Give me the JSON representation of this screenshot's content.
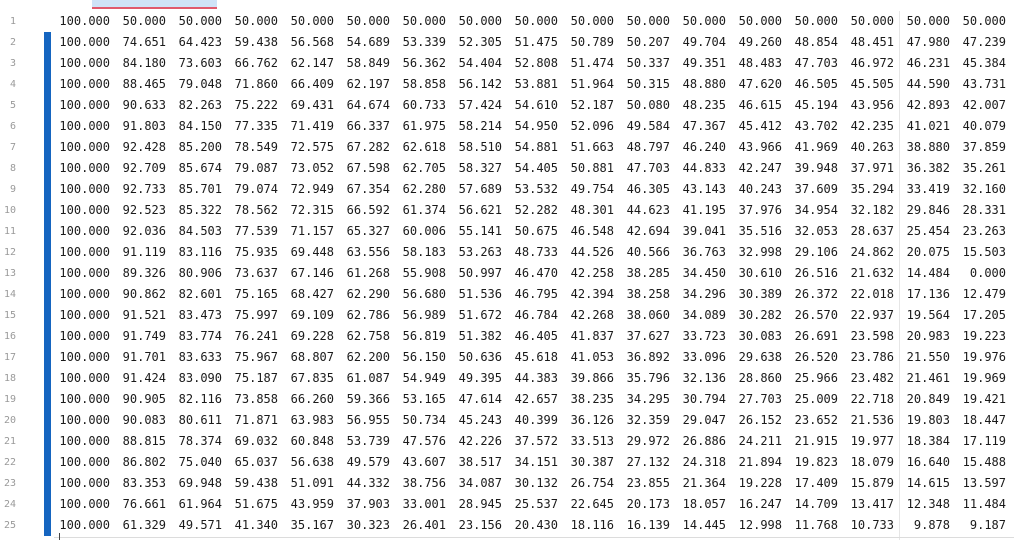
{
  "editor": {
    "first_line_number": 1,
    "rows": [
      [
        "100.000",
        "50.000",
        "50.000",
        "50.000",
        "50.000",
        "50.000",
        "50.000",
        "50.000",
        "50.000",
        "50.000",
        "50.000",
        "50.000",
        "50.000",
        "50.000",
        "50.000",
        "50.000",
        "50.000"
      ],
      [
        "100.000",
        "74.651",
        "64.423",
        "59.438",
        "56.568",
        "54.689",
        "53.339",
        "52.305",
        "51.475",
        "50.789",
        "50.207",
        "49.704",
        "49.260",
        "48.854",
        "48.451",
        "47.980",
        "47.239"
      ],
      [
        "100.000",
        "84.180",
        "73.603",
        "66.762",
        "62.147",
        "58.849",
        "56.362",
        "54.404",
        "52.808",
        "51.474",
        "50.337",
        "49.351",
        "48.483",
        "47.703",
        "46.972",
        "46.231",
        "45.384"
      ],
      [
        "100.000",
        "88.465",
        "79.048",
        "71.860",
        "66.409",
        "62.197",
        "58.858",
        "56.142",
        "53.881",
        "51.964",
        "50.315",
        "48.880",
        "47.620",
        "46.505",
        "45.505",
        "44.590",
        "43.731"
      ],
      [
        "100.000",
        "90.633",
        "82.263",
        "75.222",
        "69.431",
        "64.674",
        "60.733",
        "57.424",
        "54.610",
        "52.187",
        "50.080",
        "48.235",
        "46.615",
        "45.194",
        "43.956",
        "42.893",
        "42.007"
      ],
      [
        "100.000",
        "91.803",
        "84.150",
        "77.335",
        "71.419",
        "66.337",
        "61.975",
        "58.214",
        "54.950",
        "52.096",
        "49.584",
        "47.367",
        "45.412",
        "43.702",
        "42.235",
        "41.021",
        "40.079"
      ],
      [
        "100.000",
        "92.428",
        "85.200",
        "78.549",
        "72.575",
        "67.282",
        "62.618",
        "58.510",
        "54.881",
        "51.663",
        "48.797",
        "46.240",
        "43.966",
        "41.969",
        "40.263",
        "38.880",
        "37.859"
      ],
      [
        "100.000",
        "92.709",
        "85.674",
        "79.087",
        "73.052",
        "67.598",
        "62.705",
        "58.327",
        "54.405",
        "50.881",
        "47.703",
        "44.833",
        "42.247",
        "39.948",
        "37.971",
        "36.382",
        "35.261"
      ],
      [
        "100.000",
        "92.733",
        "85.701",
        "79.074",
        "72.949",
        "67.354",
        "62.280",
        "57.689",
        "53.532",
        "49.754",
        "46.305",
        "43.143",
        "40.243",
        "37.609",
        "35.294",
        "33.419",
        "32.160"
      ],
      [
        "100.000",
        "92.523",
        "85.322",
        "78.562",
        "72.315",
        "66.592",
        "61.374",
        "56.621",
        "52.282",
        "48.301",
        "44.623",
        "41.195",
        "37.976",
        "34.954",
        "32.182",
        "29.846",
        "28.331"
      ],
      [
        "100.000",
        "92.036",
        "84.503",
        "77.539",
        "71.157",
        "65.327",
        "60.006",
        "55.141",
        "50.675",
        "46.548",
        "42.694",
        "39.041",
        "35.516",
        "32.053",
        "28.637",
        "25.454",
        "23.263"
      ],
      [
        "100.000",
        "91.119",
        "83.116",
        "75.935",
        "69.448",
        "63.556",
        "58.183",
        "53.263",
        "48.733",
        "44.526",
        "40.566",
        "36.763",
        "32.998",
        "29.106",
        "24.862",
        "20.075",
        "15.503"
      ],
      [
        "100.000",
        "89.326",
        "80.906",
        "73.637",
        "67.146",
        "61.268",
        "55.908",
        "50.997",
        "46.470",
        "42.258",
        "38.285",
        "34.450",
        "30.610",
        "26.516",
        "21.632",
        "14.484",
        "0.000"
      ],
      [
        "100.000",
        "90.862",
        "82.601",
        "75.165",
        "68.427",
        "62.290",
        "56.680",
        "51.536",
        "46.795",
        "42.394",
        "38.258",
        "34.296",
        "30.389",
        "26.372",
        "22.018",
        "17.136",
        "12.479"
      ],
      [
        "100.000",
        "91.521",
        "83.473",
        "75.997",
        "69.109",
        "62.786",
        "56.989",
        "51.672",
        "46.784",
        "42.268",
        "38.060",
        "34.089",
        "30.282",
        "26.570",
        "22.937",
        "19.564",
        "17.205"
      ],
      [
        "100.000",
        "91.749",
        "83.774",
        "76.241",
        "69.228",
        "62.758",
        "56.819",
        "51.382",
        "46.405",
        "41.837",
        "37.627",
        "33.723",
        "30.083",
        "26.691",
        "23.598",
        "20.983",
        "19.223"
      ],
      [
        "100.000",
        "91.701",
        "83.633",
        "75.967",
        "68.807",
        "62.200",
        "56.150",
        "50.636",
        "45.618",
        "41.053",
        "36.892",
        "33.096",
        "29.638",
        "26.520",
        "23.786",
        "21.550",
        "19.976"
      ],
      [
        "100.000",
        "91.424",
        "83.090",
        "75.187",
        "67.835",
        "61.087",
        "54.949",
        "49.395",
        "44.383",
        "39.866",
        "35.796",
        "32.136",
        "28.860",
        "25.966",
        "23.482",
        "21.461",
        "19.969"
      ],
      [
        "100.000",
        "90.905",
        "82.116",
        "73.858",
        "66.260",
        "59.366",
        "53.165",
        "47.614",
        "42.657",
        "38.235",
        "34.295",
        "30.794",
        "27.703",
        "25.009",
        "22.718",
        "20.849",
        "19.421"
      ],
      [
        "100.000",
        "90.083",
        "80.611",
        "71.871",
        "63.983",
        "56.955",
        "50.734",
        "45.243",
        "40.399",
        "36.126",
        "32.359",
        "29.047",
        "26.152",
        "23.652",
        "21.536",
        "19.803",
        "18.447"
      ],
      [
        "100.000",
        "88.815",
        "78.374",
        "69.032",
        "60.848",
        "53.739",
        "47.576",
        "42.226",
        "37.572",
        "33.513",
        "29.972",
        "26.886",
        "24.211",
        "21.915",
        "19.977",
        "18.384",
        "17.119"
      ],
      [
        "100.000",
        "86.802",
        "75.040",
        "65.037",
        "56.638",
        "49.579",
        "43.607",
        "38.517",
        "34.151",
        "30.387",
        "27.132",
        "24.318",
        "21.894",
        "19.823",
        "18.079",
        "16.640",
        "15.488"
      ],
      [
        "100.000",
        "83.353",
        "69.948",
        "59.438",
        "51.091",
        "44.332",
        "38.756",
        "34.087",
        "30.132",
        "26.754",
        "23.855",
        "21.364",
        "19.228",
        "17.409",
        "15.879",
        "14.615",
        "13.597"
      ],
      [
        "100.000",
        "76.661",
        "61.964",
        "51.675",
        "43.959",
        "37.903",
        "33.001",
        "28.945",
        "25.537",
        "22.645",
        "20.173",
        "18.057",
        "16.247",
        "14.709",
        "13.417",
        "12.348",
        "11.484"
      ],
      [
        "100.000",
        "61.329",
        "49.571",
        "41.340",
        "35.167",
        "30.323",
        "26.401",
        "23.156",
        "20.430",
        "18.116",
        "16.139",
        "14.445",
        "12.998",
        "11.768",
        "10.733",
        "9.878",
        "9.187"
      ]
    ],
    "colors": {
      "text": "#1a1a1a",
      "line_number": "#9a9a9a",
      "modified_bar": "#1565c0",
      "tab_highlight": "#cfe3f7",
      "tab_underline": "#e05a6d"
    }
  }
}
